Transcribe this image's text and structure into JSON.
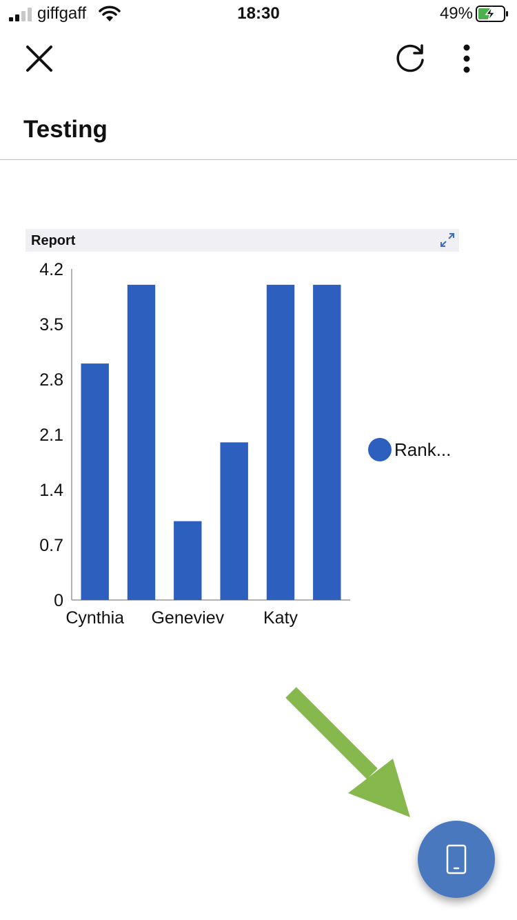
{
  "status_bar": {
    "carrier": "giffgaff",
    "time": "18:30",
    "battery": "49%",
    "battery_level": 0.49,
    "battery_color": "#4caf50",
    "icons": [
      "signal-icon",
      "wifi-icon",
      "battery-charging-icon"
    ]
  },
  "nav": {
    "icons": [
      "close-icon",
      "refresh-icon",
      "more-vertical-icon"
    ]
  },
  "page": {
    "title": "Testing"
  },
  "report": {
    "title": "Report",
    "expand_icon": "expand-icon"
  },
  "chart_data": {
    "type": "bar",
    "categories": [
      "Cynthia",
      "",
      "Geneviev",
      "",
      "Katy",
      ""
    ],
    "values": [
      3,
      4,
      1,
      2,
      4,
      4
    ],
    "title": "",
    "xlabel": "",
    "ylabel": "",
    "ylim": [
      0,
      4.2
    ],
    "yticks": [
      "0",
      "0.7",
      "1.4",
      "2.1",
      "2.8",
      "3.5",
      "4.2"
    ],
    "series": [
      {
        "name": "Rank...",
        "values": [
          3,
          4,
          1,
          2,
          4,
          4
        ]
      }
    ],
    "legend": "right",
    "grid": false,
    "bar_color": "#2d5fbf"
  },
  "fab": {
    "icon": "mobile-device-icon",
    "color": "#4a78bf"
  },
  "annotation": {
    "icon": "arrow-annotation-icon",
    "color": "#86b84e"
  }
}
